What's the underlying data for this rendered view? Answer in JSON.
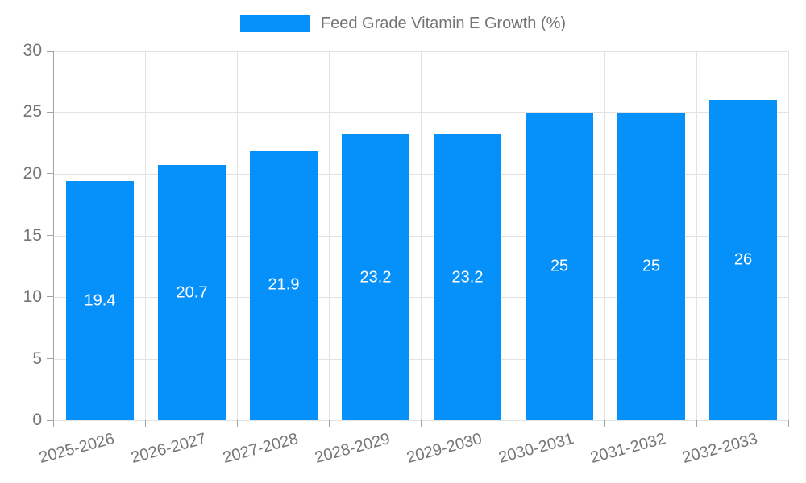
{
  "chart_data": {
    "type": "bar",
    "title": "Feed Grade Vitamin E Growth (%)",
    "legend": {
      "label": "Feed Grade Vitamin E Growth (%)",
      "position": "top-center"
    },
    "categories": [
      "2025-2026",
      "2026-2027",
      "2027-2028",
      "2028-2029",
      "2029-2030",
      "2030-2031",
      "2031-2032",
      "2032-2033"
    ],
    "values": [
      19.4,
      20.7,
      21.9,
      23.2,
      23.2,
      25,
      25,
      26
    ],
    "xlabel": "",
    "ylabel": "",
    "ylim": [
      0,
      30
    ],
    "yticks": [
      0,
      5,
      10,
      15,
      20,
      25,
      30
    ],
    "grid": {
      "horizontal": true,
      "vertical": true
    },
    "x_label_rotation_deg": -15,
    "colors": {
      "bar": "#0590fa",
      "grid": "#e2e2e2",
      "axis": "#a3a3a3",
      "tick_text": "#757575",
      "bar_label_text": "#ffffff",
      "background": "#ffffff"
    }
  }
}
